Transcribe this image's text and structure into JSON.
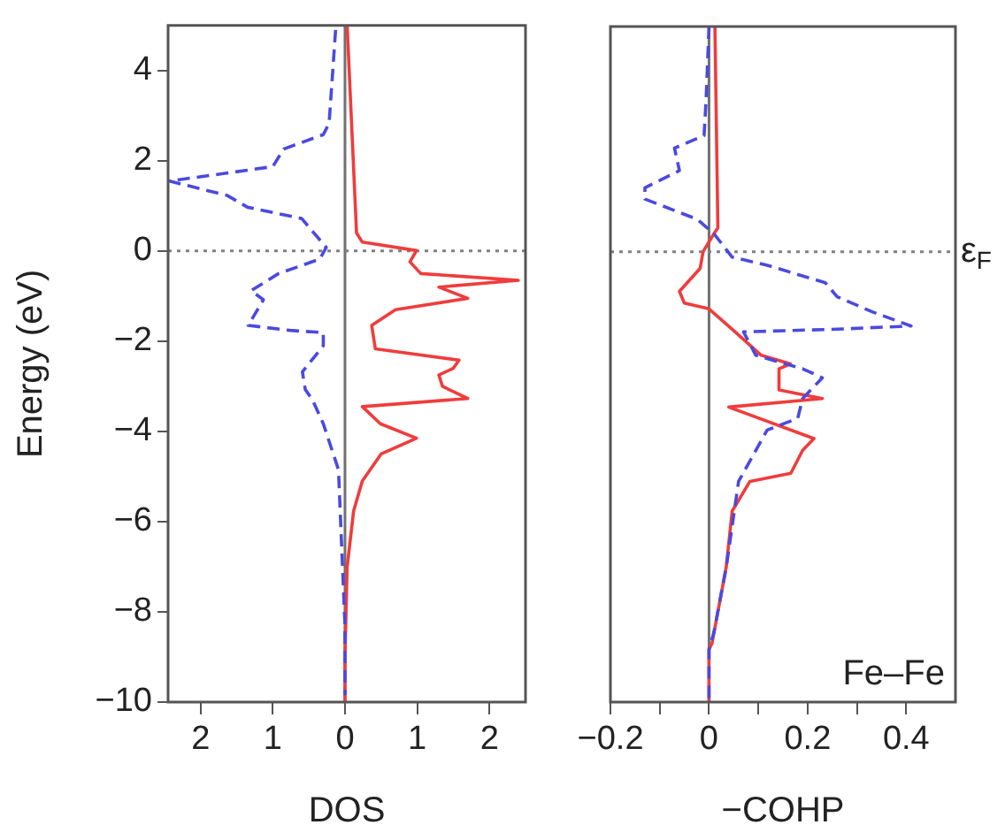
{
  "chart_data": [
    {
      "type": "line",
      "xlabel": "DOS",
      "ylabel": "Energy (eV)",
      "xlim": [
        -2.45,
        2.5
      ],
      "ylim": [
        -10,
        5
      ],
      "xticks": [
        {
          "value": -2,
          "label": "2"
        },
        {
          "value": -1,
          "label": "1"
        },
        0,
        1,
        2
      ],
      "yticks": [
        -10,
        -8,
        -6,
        -4,
        -2,
        0,
        2,
        4
      ],
      "grid": false,
      "legend": false,
      "marker": "none",
      "ref_lines": [
        {
          "axis": "x",
          "value": 0,
          "color": "#707070",
          "line_style": "solid"
        },
        {
          "axis": "y",
          "value": 0,
          "color": "#808080",
          "line_style": "dotted"
        }
      ],
      "series": [
        {
          "color": "#4a4ae0",
          "line_style": "dashed",
          "x": [
            -0.13,
            -0.22,
            -0.3,
            -0.85,
            -1.0,
            -2.43,
            -1.63,
            -1.35,
            -0.6,
            -0.26,
            -0.35,
            -0.92,
            -1.3,
            -1.13,
            -1.34,
            -0.76,
            -0.3,
            -0.3,
            -0.59,
            -0.55,
            -0.45,
            -0.3,
            -0.09,
            -0.05,
            0,
            0
          ],
          "values": [
            4.9,
            2.83,
            2.58,
            2.26,
            1.87,
            1.55,
            1.23,
            0.97,
            0.72,
            0.08,
            -0.18,
            -0.5,
            -0.88,
            -1.08,
            -1.65,
            -1.76,
            -1.81,
            -2.1,
            -2.68,
            -3.07,
            -3.3,
            -3.83,
            -4.85,
            -6.4,
            -8.3,
            -9.85
          ]
        },
        {
          "color": "#f03c3c",
          "line_style": "solid",
          "x": [
            0.03,
            0.16,
            0.24,
            0.99,
            0.9,
            1.05,
            2.4,
            1.3,
            1.7,
            0.7,
            0.37,
            0.42,
            1.58,
            1.5,
            1.3,
            1.35,
            1.7,
            0.24,
            0.49,
            0.99,
            0.5,
            0.24,
            0.12,
            0.03,
            0,
            0
          ],
          "values": [
            5,
            0.4,
            0.2,
            0.01,
            -0.24,
            -0.5,
            -0.65,
            -0.8,
            -1.05,
            -1.3,
            -1.65,
            -2.17,
            -2.42,
            -2.6,
            -2.75,
            -3.0,
            -3.27,
            -3.45,
            -3.83,
            -4.15,
            -4.5,
            -5.1,
            -5.76,
            -7.0,
            -8.96,
            -10
          ]
        }
      ]
    },
    {
      "type": "line",
      "xlabel": "−COHP",
      "xlim": [
        -0.2,
        0.5
      ],
      "ylim": [
        -10,
        5
      ],
      "xticks": [
        -0.2,
        {
          "value": -0.1,
          "label": null
        },
        0,
        {
          "value": 0.1,
          "label": null
        },
        0.2,
        {
          "value": 0.3,
          "label": null
        },
        0.4
      ],
      "yticks": [
        -10,
        -8,
        -6,
        -4,
        -2,
        0,
        2,
        4
      ],
      "tick_labels": "x",
      "grid": false,
      "legend": false,
      "marker": "none",
      "ref_lines": [
        {
          "axis": "x",
          "value": 0,
          "color": "#707070",
          "line_style": "solid"
        },
        {
          "axis": "y",
          "value": 0,
          "color": "#808080",
          "line_style": "dotted",
          "label": "ε$_{F}$"
        }
      ],
      "annotations": [
        "Fe–Fe"
      ],
      "series": [
        {
          "color": "#4a4ae0",
          "line_style": "dashed",
          "x": [
            0,
            -0.006,
            -0.01,
            -0.07,
            -0.06,
            -0.13,
            -0.13,
            -0.024,
            0.01,
            0.047,
            0.118,
            0.236,
            0.26,
            0.33,
            0.41,
            0.26,
            0.07,
            0.095,
            0.19,
            0.23,
            0.19,
            0.18,
            0.118,
            0.06,
            0.035,
            0.01,
            0,
            0
          ],
          "values": [
            5,
            3.35,
            2.58,
            2.3,
            1.8,
            1.42,
            1.17,
            0.72,
            0.4,
            -0.12,
            -0.3,
            -0.69,
            -1.0,
            -1.33,
            -1.65,
            -1.72,
            -1.78,
            -2.3,
            -2.6,
            -2.8,
            -3.26,
            -3.7,
            -3.96,
            -5.1,
            -7.0,
            -8.45,
            -8.83,
            -10
          ]
        },
        {
          "color": "#f03c3c",
          "line_style": "solid",
          "x": [
            0.012,
            0.018,
            0.01,
            -0.012,
            -0.018,
            -0.06,
            -0.05,
            0,
            0.047,
            0.106,
            0.165,
            0.142,
            0.142,
            0.23,
            0.04,
            0.213,
            0.19,
            0.166,
            0.083,
            0.047,
            0.035,
            0.006,
            0,
            0
          ],
          "values": [
            5,
            0.53,
            0.4,
            0,
            -0.37,
            -0.88,
            -1.14,
            -1.27,
            -1.72,
            -2.3,
            -2.49,
            -2.6,
            -3.07,
            -3.26,
            -3.45,
            -4.15,
            -4.41,
            -4.92,
            -5.1,
            -5.76,
            -7.0,
            -8.7,
            -8.83,
            -10
          ]
        }
      ]
    }
  ]
}
